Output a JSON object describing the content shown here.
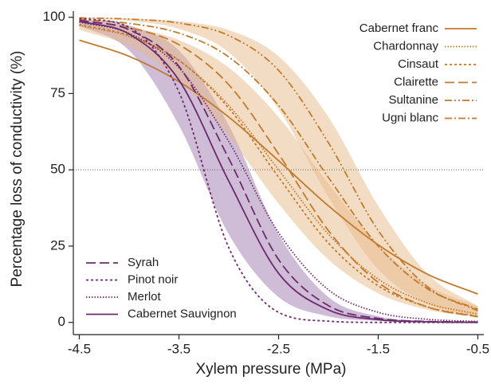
{
  "chart_data": {
    "type": "line",
    "xlabel": "Xylem pressure (MPa)",
    "ylabel": "Percentage loss of conductivity (%)",
    "x": [
      -4.5,
      -4,
      -3.5,
      -3,
      -2.5,
      -2,
      -1.5,
      -1,
      -0.5
    ],
    "xlim": [
      -4.56,
      -0.44
    ],
    "ylim": [
      -4,
      102
    ],
    "xticks": [
      -4.5,
      -3.5,
      -2.5,
      -1.5,
      -0.5
    ],
    "yticks": [
      0,
      25,
      50,
      75,
      100
    ],
    "hline": 50,
    "bands": [
      {
        "color": "#a07ab0",
        "upper": [
          99.4,
          97.3,
          89.1,
          64.6,
          28.9,
          8.3,
          2.0,
          0.5,
          0.1
        ],
        "lower": [
          97.3,
          89.1,
          64.6,
          28.9,
          8.3,
          2.0,
          0.5,
          0.1,
          0.0
        ]
      },
      {
        "color": "#e8b98a",
        "upper": [
          98.7,
          96.8,
          92.5,
          83.5,
          67.3,
          45.5,
          25.4,
          12.1,
          5.3
        ],
        "lower": [
          95.9,
          90.5,
          79.4,
          61.1,
          38.9,
          20.6,
          9.5,
          4.1,
          1.7
        ]
      },
      {
        "color": "#e8b98a",
        "upper": [
          99.9,
          99.6,
          98.7,
          95.8,
          87.2,
          67.3,
          38.2,
          15.7,
          5.3
        ],
        "lower": [
          99.6,
          98.8,
          96.2,
          88.5,
          69.9,
          41.1,
          17.4,
          6.0,
          1.9
        ]
      }
    ],
    "series": [
      {
        "name": "Cabernet franc",
        "color": "#c27a2c",
        "dash": "none",
        "legend": "upper right",
        "values": [
          92.5,
          87.2,
          78.9,
          67.3,
          53.0,
          38.2,
          25.4,
          15.7,
          9.3
        ]
      },
      {
        "name": "Chardonnay",
        "color": "#c27a2c",
        "dash": "1.5 2",
        "legend": "upper right",
        "values": [
          97.3,
          93.7,
          85.8,
          71.1,
          50.0,
          28.9,
          14.2,
          6.3,
          2.7
        ]
      },
      {
        "name": "Cinsaut",
        "color": "#c27a2c",
        "dash": "3 3",
        "legend": "upper right",
        "values": [
          97.6,
          94.0,
          85.9,
          70.2,
          47.6,
          26.0,
          12.0,
          5.0,
          2.0
        ]
      },
      {
        "name": "Clairette",
        "color": "#c27a2c",
        "dash": "12 5",
        "legend": "upper right",
        "values": [
          98.8,
          96.6,
          91.0,
          77.9,
          55.2,
          30.1,
          13.1,
          5.0,
          1.8
        ]
      },
      {
        "name": "Sultanine",
        "color": "#c27a2c",
        "dash": "9 3 2 3 2 3",
        "legend": "upper right",
        "values": [
          99.8,
          99.4,
          98.1,
          94.0,
          82.6,
          58.9,
          30.1,
          11.5,
          3.8
        ]
      },
      {
        "name": "Ugni blanc",
        "color": "#c27a2c",
        "dash": "9 3 2 3",
        "legend": "upper right",
        "values": [
          99.3,
          98.0,
          94.8,
          87.0,
          71.1,
          47.5,
          25.0,
          10.9,
          4.3
        ]
      },
      {
        "name": "Syrah",
        "color": "#6e2a6e",
        "dash": "12 5",
        "legend": "lower left",
        "values": [
          99.0,
          95.9,
          83.9,
          53.7,
          20.6,
          5.5,
          1.3,
          0.3,
          0.1
        ]
      },
      {
        "name": "Pinot noir",
        "color": "#6e2a6e",
        "dash": "3 3",
        "legend": "lower left",
        "values": [
          99.6,
          96.7,
          75.5,
          24.5,
          3.3,
          0.4,
          0.0,
          0.0,
          0.0
        ]
      },
      {
        "name": "Merlot",
        "color": "#6e2a6e",
        "dash": "1.5 2",
        "legend": "lower left",
        "values": [
          98.4,
          94.7,
          83.5,
          59.3,
          29.4,
          10.7,
          3.3,
          1.0,
          0.3
        ]
      },
      {
        "name": "Cabernet Sauvignon",
        "color": "#6e2a6e",
        "dash": "none",
        "legend": "lower left",
        "values": [
          98.7,
          94.5,
          79.4,
          46.3,
          16.1,
          4.1,
          0.9,
          0.2,
          0.0
        ]
      }
    ]
  }
}
